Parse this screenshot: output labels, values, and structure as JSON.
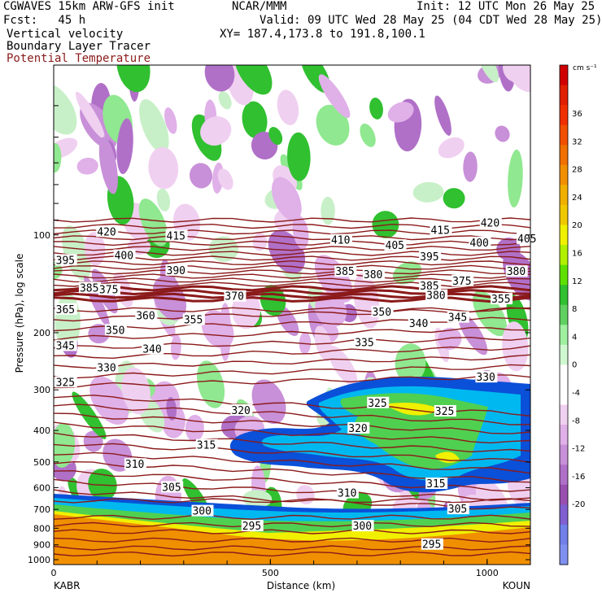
{
  "header": {
    "model": "CGWAVES 15km ARW-GFS init",
    "org": "NCAR/MMM",
    "init": "Init: 12 UTC Mon 26 May 25",
    "fcst": "Fcst:   45 h",
    "valid": "Valid: 09 UTC Wed 28 May 25 (04 CDT Wed 28 May 25)",
    "fields": [
      "Vertical velocity",
      "Boundary Layer Tracer",
      "Potential Temperature"
    ],
    "xy": "XY= 187.4,173.8 to 191.8,100.1"
  },
  "colors": {
    "theta": "#8b1a1a",
    "neg_scale": [
      "#f0d0f0",
      "#e0b0e8",
      "#c890d8",
      "#b070c8",
      "#9850b0",
      "#8060d0",
      "#8080f0"
    ],
    "pos_scale": [
      "#c8f0c8",
      "#90e890",
      "#30c030",
      "#a0f060",
      "#f0f000",
      "#f0c000",
      "#f09000",
      "#f07000",
      "#f05000",
      "#e03000",
      "#d00000"
    ],
    "bl_tracer": [
      "#0a50d8",
      "#00b8f0",
      "#30c8a0",
      "#50d050",
      "#b0f000",
      "#f0f000",
      "#f09000"
    ]
  },
  "chart_data": {
    "type": "cross-section",
    "ylabel": "Pressure (hPa), log scale",
    "xlabel": "Distance (km)",
    "y_scale": "log",
    "xlim": [
      0,
      1100
    ],
    "ylim": [
      1000,
      30
    ],
    "x_ticks": [
      0,
      500,
      1000
    ],
    "y_ticks": [
      100,
      200,
      300,
      400,
      500,
      600,
      700,
      800,
      900,
      1000
    ],
    "endpoints": {
      "left": "KABR",
      "right": "KOUN"
    },
    "colorbar": {
      "units": "cm s⁻¹",
      "ticks": [
        36,
        32,
        28,
        24,
        20,
        16,
        12,
        8,
        4,
        0,
        -4,
        -8,
        -12,
        -16,
        -20
      ]
    },
    "theta_labels": [
      {
        "v": 420,
        "x": 100,
        "p": 98
      },
      {
        "v": 415,
        "x": 260,
        "p": 101
      },
      {
        "v": 410,
        "x": 640,
        "p": 104
      },
      {
        "v": 415,
        "x": 870,
        "p": 97
      },
      {
        "v": 420,
        "x": 985,
        "p": 92
      },
      {
        "v": 405,
        "x": 765,
        "p": 108
      },
      {
        "v": 405,
        "x": 1070,
        "p": 103
      },
      {
        "v": 400,
        "x": 960,
        "p": 106
      },
      {
        "v": 395,
        "x": 5,
        "p": 120
      },
      {
        "v": 400,
        "x": 140,
        "p": 116
      },
      {
        "v": 395,
        "x": 845,
        "p": 117
      },
      {
        "v": 390,
        "x": 260,
        "p": 129
      },
      {
        "v": 385,
        "x": 650,
        "p": 130
      },
      {
        "v": 380,
        "x": 715,
        "p": 133
      },
      {
        "v": 380,
        "x": 1045,
        "p": 130
      },
      {
        "v": 385,
        "x": 60,
        "p": 146
      },
      {
        "v": 375,
        "x": 105,
        "p": 148
      },
      {
        "v": 375,
        "x": 920,
        "p": 139
      },
      {
        "v": 370,
        "x": 395,
        "p": 155
      },
      {
        "v": 385,
        "x": 845,
        "p": 144
      },
      {
        "v": 380,
        "x": 860,
        "p": 154
      },
      {
        "v": 365,
        "x": 5,
        "p": 170
      },
      {
        "v": 360,
        "x": 190,
        "p": 178
      },
      {
        "v": 355,
        "x": 300,
        "p": 183
      },
      {
        "v": 350,
        "x": 735,
        "p": 173
      },
      {
        "v": 355,
        "x": 1010,
        "p": 158
      },
      {
        "v": 350,
        "x": 120,
        "p": 197
      },
      {
        "v": 345,
        "x": 5,
        "p": 220
      },
      {
        "v": 340,
        "x": 205,
        "p": 225
      },
      {
        "v": 340,
        "x": 820,
        "p": 188
      },
      {
        "v": 345,
        "x": 910,
        "p": 180
      },
      {
        "v": 330,
        "x": 100,
        "p": 257
      },
      {
        "v": 335,
        "x": 695,
        "p": 215
      },
      {
        "v": 325,
        "x": 5,
        "p": 285
      },
      {
        "v": 330,
        "x": 975,
        "p": 275
      },
      {
        "v": 320,
        "x": 410,
        "p": 348
      },
      {
        "v": 325,
        "x": 725,
        "p": 330
      },
      {
        "v": 325,
        "x": 880,
        "p": 350
      },
      {
        "v": 320,
        "x": 680,
        "p": 395
      },
      {
        "v": 315,
        "x": 330,
        "p": 445
      },
      {
        "v": 310,
        "x": 165,
        "p": 510
      },
      {
        "v": 305,
        "x": 250,
        "p": 600
      },
      {
        "v": 315,
        "x": 860,
        "p": 585
      },
      {
        "v": 310,
        "x": 655,
        "p": 625
      },
      {
        "v": 300,
        "x": 320,
        "p": 710
      },
      {
        "v": 305,
        "x": 910,
        "p": 700
      },
      {
        "v": 295,
        "x": 435,
        "p": 790
      },
      {
        "v": 300,
        "x": 690,
        "p": 790
      },
      {
        "v": 295,
        "x": 850,
        "p": 900
      }
    ]
  }
}
